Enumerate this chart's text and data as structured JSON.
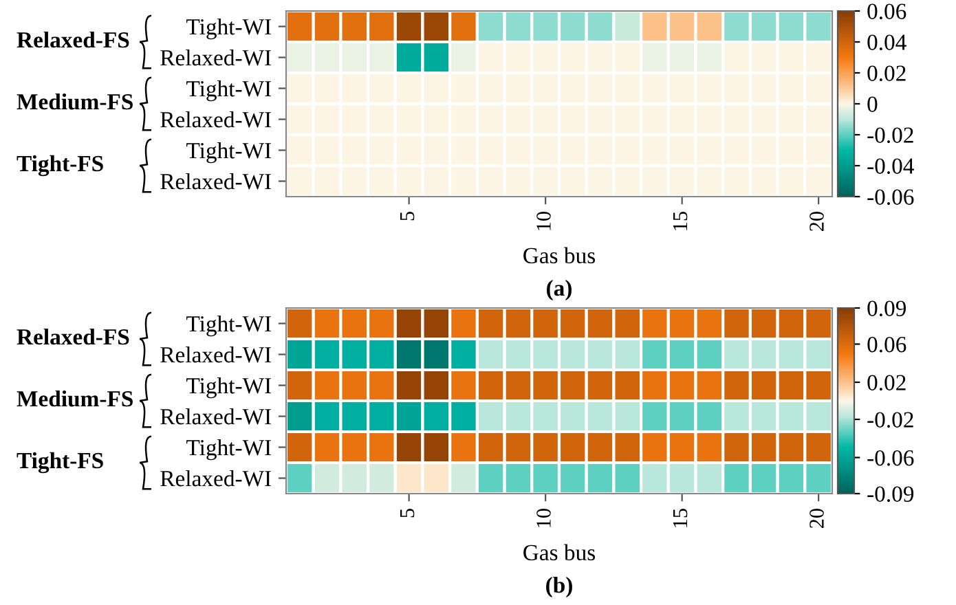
{
  "chart_data": [
    {
      "type": "heatmap",
      "xlabel": "Gas bus",
      "annotations": [
        "Relaxed-FS",
        "Medium-FS",
        "Tight-FS",
        "(a)"
      ],
      "categories": [
        null,
        null,
        null,
        null,
        "5",
        null,
        null,
        null,
        null,
        "10",
        null,
        null,
        null,
        null,
        "15",
        null,
        null,
        null,
        null,
        "20"
      ],
      "y_categories": [
        "Tight-WI",
        "Relaxed-WI",
        "Tight-WI",
        "Relaxed-WI",
        "Tight-WI",
        "Relaxed-WI"
      ],
      "cells": [
        [
          0.035,
          0.035,
          0.035,
          0.035,
          0.055,
          0.055,
          0.035,
          -0.015,
          -0.015,
          -0.015,
          -0.015,
          -0.015,
          -0.008,
          0.012,
          0.012,
          0.012,
          -0.015,
          -0.015,
          -0.015,
          -0.015
        ],
        [
          -0.003,
          -0.003,
          -0.003,
          -0.003,
          -0.035,
          -0.035,
          -0.003,
          0,
          0,
          0,
          0,
          0,
          0,
          -0.003,
          -0.003,
          -0.003,
          0,
          0,
          0,
          0
        ],
        [
          0,
          0,
          0,
          0,
          0,
          0,
          0,
          0,
          0,
          0,
          0,
          0,
          0,
          0,
          0,
          0,
          0,
          0,
          0,
          0
        ],
        [
          0,
          0,
          0,
          0,
          0,
          0,
          0,
          0,
          0,
          0,
          0,
          0,
          0,
          0,
          0,
          0,
          0,
          0,
          0,
          0
        ],
        [
          0,
          0,
          0,
          0,
          0,
          0,
          0,
          0,
          0,
          0,
          0,
          0,
          0,
          0,
          0,
          0,
          0,
          0,
          0,
          0
        ],
        [
          0,
          0,
          0,
          0,
          0,
          0,
          0,
          0,
          0,
          0,
          0,
          0,
          0,
          0,
          0,
          0,
          0,
          0,
          0,
          0
        ]
      ],
      "clim": [
        -0.06,
        0.06
      ],
      "cticks": [
        -0.06,
        -0.04,
        -0.02,
        0,
        0.02,
        0.04,
        0.06
      ]
    },
    {
      "type": "heatmap",
      "xlabel": "Gas bus",
      "annotations": [
        "Relaxed-FS",
        "Medium-FS",
        "Tight-FS",
        "(b)"
      ],
      "categories": [
        null,
        null,
        null,
        null,
        "5",
        null,
        null,
        null,
        null,
        "10",
        null,
        null,
        null,
        null,
        "15",
        null,
        null,
        null,
        null,
        "20"
      ],
      "y_categories": [
        "Tight-WI",
        "Relaxed-WI",
        "Tight-WI",
        "Relaxed-WI",
        "Tight-WI",
        "Relaxed-WI"
      ],
      "cells": [
        [
          0.06,
          0.05,
          0.05,
          0.05,
          0.085,
          0.085,
          0.05,
          0.06,
          0.06,
          0.06,
          0.06,
          0.06,
          0.06,
          0.05,
          0.05,
          0.05,
          0.06,
          0.06,
          0.06,
          0.06
        ],
        [
          -0.055,
          -0.05,
          -0.05,
          -0.05,
          -0.08,
          -0.08,
          -0.05,
          -0.015,
          -0.015,
          -0.015,
          -0.015,
          -0.015,
          -0.015,
          -0.03,
          -0.03,
          -0.03,
          -0.015,
          -0.015,
          -0.015,
          -0.015
        ],
        [
          0.06,
          0.05,
          0.05,
          0.05,
          0.085,
          0.085,
          0.05,
          0.06,
          0.06,
          0.06,
          0.06,
          0.06,
          0.06,
          0.05,
          0.05,
          0.05,
          0.06,
          0.06,
          0.06,
          0.06
        ],
        [
          -0.06,
          -0.05,
          -0.05,
          -0.05,
          -0.055,
          -0.05,
          -0.05,
          -0.015,
          -0.015,
          -0.015,
          -0.015,
          -0.015,
          -0.015,
          -0.03,
          -0.03,
          -0.03,
          -0.015,
          -0.015,
          -0.015,
          -0.015
        ],
        [
          0.06,
          0.05,
          0.05,
          0.05,
          0.085,
          0.085,
          0.05,
          0.06,
          0.06,
          0.06,
          0.06,
          0.06,
          0.06,
          0.05,
          0.05,
          0.05,
          0.06,
          0.06,
          0.06,
          0.06
        ],
        [
          -0.03,
          -0.01,
          -0.01,
          -0.01,
          0.005,
          0.005,
          -0.01,
          -0.03,
          -0.03,
          -0.03,
          -0.03,
          -0.03,
          -0.03,
          -0.015,
          -0.015,
          -0.015,
          -0.03,
          -0.03,
          -0.03,
          -0.03
        ]
      ],
      "clim": [
        -0.09,
        0.09
      ],
      "cticks": [
        -0.09,
        {
          "value": -0.055,
          "label": "-0.06"
        },
        {
          "value": -0.018,
          "label": "-0.02"
        },
        {
          "value": 0.018,
          "label": "0.02"
        },
        {
          "value": 0.055,
          "label": "0.06"
        },
        0.09
      ]
    }
  ]
}
